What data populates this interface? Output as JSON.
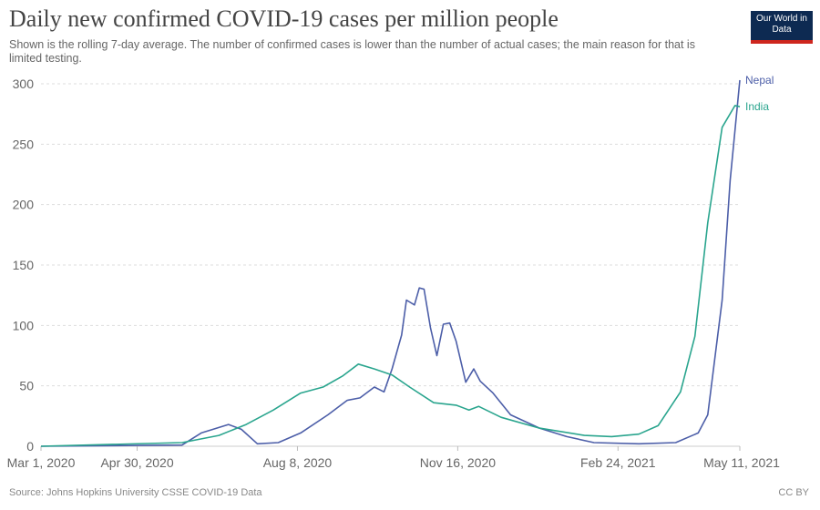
{
  "header": {
    "title": "Daily new confirmed COVID-19 cases per million people",
    "subtitle": "Shown is the rolling 7-day average. The number of confirmed cases is lower than the number of actual cases; the main reason for that is limited testing.",
    "logo": "Our World in Data"
  },
  "footer": {
    "source": "Source: Johns Hopkins University CSSE COVID-19 Data",
    "license": "CC BY"
  },
  "chart_data": {
    "type": "line",
    "title": "Daily new confirmed COVID-19 cases per million people",
    "xlabel": "",
    "ylabel": "",
    "xlim": [
      "2020-03-01",
      "2021-05-11"
    ],
    "ylim": [
      0,
      300
    ],
    "yticks": [
      0,
      50,
      100,
      150,
      200,
      250,
      300
    ],
    "xticks": [
      {
        "date": "2020-03-01",
        "label": "Mar 1, 2020"
      },
      {
        "date": "2020-04-30",
        "label": "Apr 30, 2020"
      },
      {
        "date": "2020-08-08",
        "label": "Aug 8, 2020"
      },
      {
        "date": "2020-11-16",
        "label": "Nov 16, 2020"
      },
      {
        "date": "2021-02-24",
        "label": "Feb 24, 2021"
      },
      {
        "date": "2021-05-11",
        "label": "May 11, 2021"
      }
    ],
    "grid": true,
    "legend": "line-end labels",
    "series": [
      {
        "name": "Nepal",
        "color": "#4c5ea8",
        "points": [
          [
            "2020-03-01",
            0
          ],
          [
            "2020-05-28",
            1
          ],
          [
            "2020-06-09",
            11
          ],
          [
            "2020-06-26",
            18
          ],
          [
            "2020-07-04",
            14
          ],
          [
            "2020-07-14",
            2
          ],
          [
            "2020-07-27",
            3
          ],
          [
            "2020-08-10",
            11
          ],
          [
            "2020-08-27",
            26
          ],
          [
            "2020-09-08",
            38
          ],
          [
            "2020-09-16",
            40
          ],
          [
            "2020-09-25",
            49
          ],
          [
            "2020-10-01",
            45
          ],
          [
            "2020-10-06",
            64
          ],
          [
            "2020-10-12",
            92
          ],
          [
            "2020-10-15",
            121
          ],
          [
            "2020-10-20",
            117
          ],
          [
            "2020-10-23",
            131
          ],
          [
            "2020-10-26",
            130
          ],
          [
            "2020-10-30",
            98
          ],
          [
            "2020-11-03",
            75
          ],
          [
            "2020-11-07",
            101
          ],
          [
            "2020-11-11",
            102
          ],
          [
            "2020-11-15",
            87
          ],
          [
            "2020-11-21",
            53
          ],
          [
            "2020-11-26",
            64
          ],
          [
            "2020-11-30",
            54
          ],
          [
            "2020-12-08",
            44
          ],
          [
            "2020-12-19",
            26
          ],
          [
            "2021-01-06",
            15
          ],
          [
            "2021-01-23",
            8
          ],
          [
            "2021-02-09",
            3
          ],
          [
            "2021-03-09",
            2
          ],
          [
            "2021-04-01",
            3
          ],
          [
            "2021-04-15",
            11
          ],
          [
            "2021-04-21",
            26
          ],
          [
            "2021-04-30",
            121
          ],
          [
            "2021-05-05",
            220
          ],
          [
            "2021-05-11",
            303
          ]
        ]
      },
      {
        "name": "India",
        "color": "#2aa58e",
        "points": [
          [
            "2020-03-01",
            0
          ],
          [
            "2020-05-28",
            3
          ],
          [
            "2020-06-20",
            9
          ],
          [
            "2020-07-07",
            18
          ],
          [
            "2020-07-24",
            30
          ],
          [
            "2020-08-10",
            44
          ],
          [
            "2020-08-24",
            49
          ],
          [
            "2020-09-05",
            58
          ],
          [
            "2020-09-15",
            68
          ],
          [
            "2020-09-25",
            64
          ],
          [
            "2020-10-06",
            59
          ],
          [
            "2020-10-17",
            49
          ],
          [
            "2020-11-01",
            36
          ],
          [
            "2020-11-15",
            34
          ],
          [
            "2020-11-23",
            30
          ],
          [
            "2020-11-29",
            33
          ],
          [
            "2020-12-13",
            24
          ],
          [
            "2021-01-06",
            15
          ],
          [
            "2021-02-03",
            9
          ],
          [
            "2021-02-20",
            8
          ],
          [
            "2021-03-09",
            10
          ],
          [
            "2021-03-21",
            17
          ],
          [
            "2021-04-04",
            45
          ],
          [
            "2021-04-13",
            91
          ],
          [
            "2021-04-21",
            185
          ],
          [
            "2021-04-30",
            264
          ],
          [
            "2021-05-08",
            282
          ],
          [
            "2021-05-11",
            281
          ]
        ]
      }
    ]
  }
}
